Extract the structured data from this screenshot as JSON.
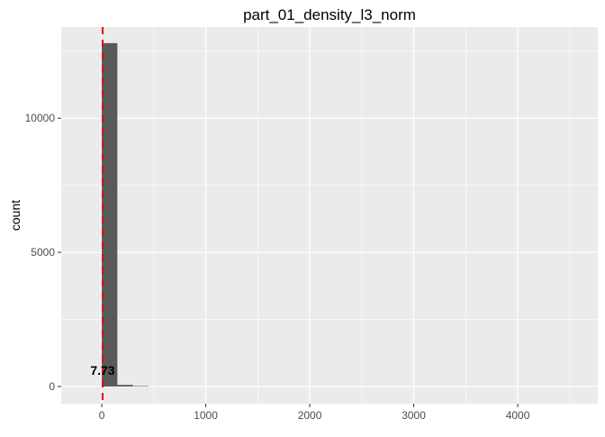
{
  "chart_data": {
    "type": "bar",
    "title": "part_01_density_l3_norm",
    "xlabel": "",
    "ylabel": "count",
    "xlim": [
      -390,
      4770
    ],
    "ylim": [
      -640,
      13400
    ],
    "x_ticks": [
      0,
      1000,
      2000,
      3000,
      4000
    ],
    "x_tick_labels": [
      "0",
      "1000",
      "2000",
      "3000",
      "4000"
    ],
    "y_ticks": [
      0,
      5000,
      10000
    ],
    "y_tick_labels": [
      "0",
      "5000",
      "10000"
    ],
    "x_minor_ticks": [
      500,
      1500,
      2500,
      3500,
      4500
    ],
    "y_minor_ticks": [
      2500,
      7500,
      12500
    ],
    "bin_width": 150,
    "bins": [
      {
        "start": 0,
        "end": 150,
        "count": 12800
      },
      {
        "start": 150,
        "end": 300,
        "count": 60
      },
      {
        "start": 300,
        "end": 450,
        "count": 15
      }
    ],
    "vline": {
      "x": 7.73,
      "color": "#e60000",
      "style": "dashed"
    },
    "annotation": {
      "text": "7.73",
      "x": 7.73,
      "y": 600
    },
    "bar_color": "#595959",
    "panel_background": "#ebebeb",
    "grid_color": "#ffffff",
    "grid": true
  }
}
